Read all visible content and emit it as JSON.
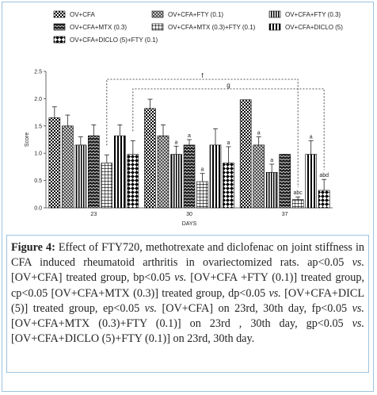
{
  "chart_data": {
    "type": "bar",
    "y_label": "Score",
    "x_label": "DAYS",
    "categories": [
      "23",
      "30",
      "37"
    ],
    "ylim": [
      0,
      2.5
    ],
    "yticks": [
      {
        "value": 0,
        "label": "0.0"
      },
      {
        "value": 0.5,
        "label": "0.5"
      },
      {
        "value": 1,
        "label": "1.0"
      },
      {
        "value": 1.5,
        "label": "1.5"
      },
      {
        "value": 2,
        "label": "2.0"
      },
      {
        "value": 2.5,
        "label": "2.5"
      }
    ],
    "series": [
      {
        "name": "OV+CFA",
        "color": "#000000",
        "values": [
          1.65,
          1.82,
          1.98
        ],
        "errors": [
          0.2,
          0.17,
          0.0
        ],
        "significance": [
          null,
          null,
          null
        ]
      },
      {
        "name": "OV+CFA+FTY (0.1)",
        "color": "#000000",
        "values": [
          1.5,
          1.32,
          1.15
        ],
        "errors": [
          0.2,
          0.2,
          0.15
        ],
        "significance": [
          null,
          null,
          "a"
        ]
      },
      {
        "name": "OV+CFA+FTY (0.3)",
        "color": "#000000",
        "values": [
          1.15,
          0.98,
          0.65
        ],
        "errors": [
          0.15,
          0.15,
          0.15
        ],
        "significance": [
          null,
          "a",
          "a"
        ]
      },
      {
        "name": "OV+CFA+MTX (0.3)",
        "color": "#000000",
        "values": [
          1.32,
          1.15,
          0.98
        ],
        "errors": [
          0.2,
          0.1,
          0.0
        ],
        "significance": [
          null,
          "a",
          null
        ]
      },
      {
        "name": "OV+CFA+MTX (0.3)+FTY (0.1)",
        "color": "#000000",
        "values": [
          0.82,
          0.48,
          0.15
        ],
        "errors": [
          0.15,
          0.15,
          0.05
        ],
        "significance": [
          null,
          "a",
          "abc"
        ]
      },
      {
        "name": "OV+CFA+DICLO (5)",
        "color": "#000000",
        "values": [
          1.32,
          1.15,
          0.98
        ],
        "errors": [
          0.2,
          0.3,
          0.25
        ],
        "significance": [
          null,
          null,
          "a"
        ]
      },
      {
        "name": "OV+CFA+DICLO (5)+FTY (0.1)",
        "color": "#000000",
        "values": [
          0.98,
          0.82,
          0.32
        ],
        "errors": [
          0.25,
          0.3,
          0.2
        ],
        "significance": [
          null,
          "a",
          "abd"
        ]
      }
    ],
    "brackets": [
      {
        "label": "f",
        "series": 4,
        "categories": [
          0,
          2
        ]
      },
      {
        "label": "g",
        "series": 6,
        "categories": [
          0,
          2
        ]
      }
    ]
  },
  "caption": {
    "label": "Figure 4:",
    "parts": [
      {
        "text": " Effect of FTY720, methotrexate and diclofenac on joint stiffness in CFA induced rheumatoid arthritis in ovariectomized rats. ap<0.05 ",
        "italic": false
      },
      {
        "text": "vs.",
        "italic": true
      },
      {
        "text": " [OV+CFA] treated group, bp<0.05 ",
        "italic": false
      },
      {
        "text": "vs.",
        "italic": true
      },
      {
        "text": " [OV+CFA +FTY (0.1)] treated group, cp<0.05 [OV+CFA+MTX (0.3)] treated group, dp<0.05 ",
        "italic": false
      },
      {
        "text": "vs.",
        "italic": true
      },
      {
        "text": " [OV+CFA+DICL (5)] treated group, ep<0.05 ",
        "italic": false
      },
      {
        "text": "vs.",
        "italic": true
      },
      {
        "text": " [OV+CFA] on 23rd, 30th day, fp<0.05 ",
        "italic": false
      },
      {
        "text": "vs.",
        "italic": true
      },
      {
        "text": " [OV+CFA+MTX (0.3)+FTY (0.1)] on 23rd , 30th day, gp<0.05 ",
        "italic": false
      },
      {
        "text": "vs.",
        "italic": true
      },
      {
        "text": " [OV+CFA+DICLO (5)+FTY (0.1)] on 23rd, 30th day.",
        "italic": false
      }
    ]
  }
}
